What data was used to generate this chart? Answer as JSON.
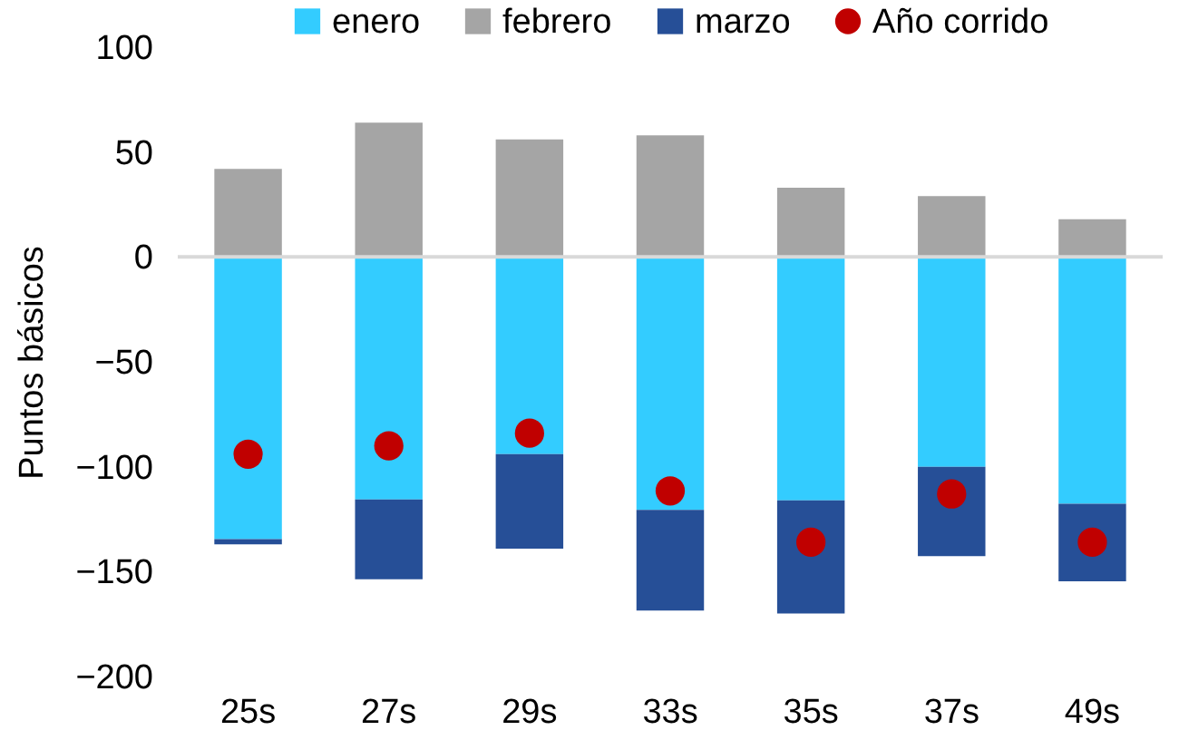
{
  "chart_data": {
    "type": "bar",
    "stacked": true,
    "ylabel": "Puntos básicos",
    "categories": [
      "25s",
      "27s",
      "29s",
      "33s",
      "35s",
      "37s",
      "49s"
    ],
    "series": [
      {
        "name": "enero",
        "color": "#33ccff",
        "values": [
          -134.5,
          -115.6,
          -94,
          -120.6,
          -116,
          -100,
          -117.6
        ]
      },
      {
        "name": "febrero",
        "color": "#a5a5a5",
        "values": [
          42,
          64,
          56,
          58,
          33,
          29,
          18
        ]
      },
      {
        "name": "marzo",
        "color": "#264f97",
        "values": [
          -2.5,
          -38,
          -45,
          -48,
          -54,
          -42.6,
          -37
        ]
      },
      {
        "name": "Año corrido",
        "type": "scatter",
        "color": "#c00000",
        "values": [
          -94,
          -90,
          -84,
          -111.5,
          -136,
          -113,
          -136
        ]
      }
    ],
    "ylim": [
      -200,
      100
    ],
    "yticks": [
      -200,
      -150,
      -100,
      -50,
      0,
      50,
      100
    ],
    "ref_lines": [
      {
        "axis": "y",
        "value": 0,
        "color": "#d9d9d9"
      }
    ],
    "legend": "top",
    "marker": "circle",
    "grid": false
  }
}
